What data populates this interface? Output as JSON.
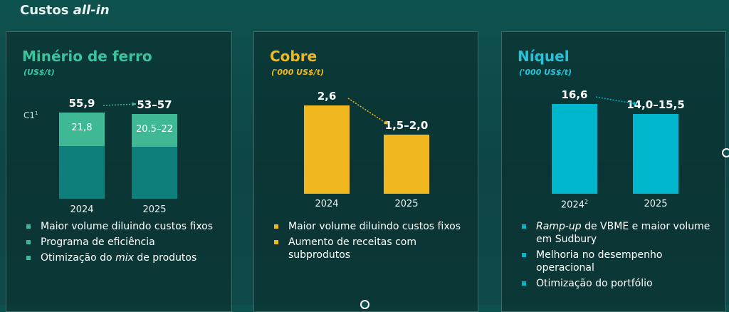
{
  "title": {
    "prefix": "Custos ",
    "emphasis": "all-in"
  },
  "colors": {
    "iron_top": "#3fb896",
    "iron_bottom": "#0e7f7a",
    "copper": "#f0b81e",
    "nickel": "#00b6cc",
    "iron_heading": "#38c49c",
    "nickel_heading": "#27c3d9"
  },
  "panels": [
    {
      "title": "Minério de ferro",
      "unit": "(US$/t)",
      "c1_label": "C1",
      "c1_sup": "1",
      "bullets": [
        {
          "parts": [
            "Maior volume diluindo custos fixos"
          ]
        },
        {
          "parts": [
            "Programa de eficiência"
          ]
        },
        {
          "pre": "Otimização do ",
          "em": "mix",
          "post": " de produtos"
        }
      ]
    },
    {
      "title": "Cobre",
      "unit": "('000 US$/t)",
      "bullets": [
        {
          "parts": [
            "Maior volume diluindo custos fixos"
          ]
        },
        {
          "parts": [
            "Aumento de receitas com subprodutos"
          ]
        }
      ]
    },
    {
      "title": "Níquel",
      "unit": "('000 US$/t)",
      "bullets": [
        {
          "em": "Ramp-up",
          "post": " de VBME e maior volume em Sudbury"
        },
        {
          "parts": [
            "Melhoria no desempenho operacional"
          ]
        },
        {
          "parts": [
            "Otimização do portfólio"
          ]
        }
      ]
    }
  ],
  "chart_data": [
    {
      "type": "bar",
      "title": "Minério de ferro",
      "ylabel": "(US$/t)",
      "categories": [
        "2024",
        "2025"
      ],
      "values": [
        55.9,
        55
      ],
      "value_labels": [
        "55,9",
        "53–57"
      ],
      "segments": {
        "name": "C1",
        "values": [
          21.8,
          21.25
        ],
        "labels": [
          "21,8",
          "20.5–22"
        ]
      },
      "range_2025": [
        53,
        57
      ],
      "range_c1_2025": [
        20.5,
        22
      ]
    },
    {
      "type": "bar",
      "title": "Cobre",
      "ylabel": "('000 US$/t)",
      "categories": [
        "2024",
        "2025"
      ],
      "values": [
        2.6,
        1.75
      ],
      "value_labels": [
        "2,6",
        "1,5–2,0"
      ],
      "range_2025": [
        1.5,
        2.0
      ]
    },
    {
      "type": "bar",
      "title": "Níquel",
      "ylabel": "('000 US$/t)",
      "categories": [
        "2024",
        "2025"
      ],
      "category_sup": [
        "2",
        ""
      ],
      "values": [
        16.6,
        14.75
      ],
      "value_labels": [
        "16,6",
        "14,0–15,5"
      ],
      "range_2025": [
        14.0,
        15.5
      ]
    }
  ]
}
